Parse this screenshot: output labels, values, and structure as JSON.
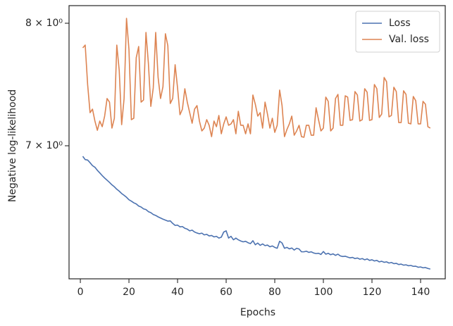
{
  "chart_data": {
    "type": "line",
    "xlabel": "Epochs",
    "ylabel": "Negative log-likelihood",
    "yscale": "log",
    "legend": "upper right",
    "grid": false,
    "xlim": [
      -4.65,
      150.15
    ],
    "ylim": [
      6.055,
      8.155
    ],
    "xticks": [
      0,
      20,
      40,
      60,
      80,
      100,
      120,
      140
    ],
    "yticks": [
      {
        "value": 7,
        "label": "7 × 10⁰"
      },
      {
        "value": 8,
        "label": "8 × 10⁰"
      }
    ],
    "x": [
      1,
      2,
      3,
      4,
      5,
      6,
      7,
      8,
      9,
      10,
      11,
      12,
      13,
      14,
      15,
      16,
      17,
      18,
      19,
      20,
      21,
      22,
      23,
      24,
      25,
      26,
      27,
      28,
      29,
      30,
      31,
      32,
      33,
      34,
      35,
      36,
      37,
      38,
      39,
      40,
      41,
      42,
      43,
      44,
      45,
      46,
      47,
      48,
      49,
      50,
      51,
      52,
      53,
      54,
      55,
      56,
      57,
      58,
      59,
      60,
      61,
      62,
      63,
      64,
      65,
      66,
      67,
      68,
      69,
      70,
      71,
      72,
      73,
      74,
      75,
      76,
      77,
      78,
      79,
      80,
      81,
      82,
      83,
      84,
      85,
      86,
      87,
      88,
      89,
      90,
      91,
      92,
      93,
      94,
      95,
      96,
      97,
      98,
      99,
      100,
      101,
      102,
      103,
      104,
      105,
      106,
      107,
      108,
      109,
      110,
      111,
      112,
      113,
      114,
      115,
      116,
      117,
      118,
      119,
      120,
      121,
      122,
      123,
      124,
      125,
      126,
      127,
      128,
      129,
      130,
      131,
      132,
      133,
      134,
      135,
      136,
      137,
      138,
      139,
      140,
      141,
      142,
      143,
      144
    ],
    "series": [
      {
        "name": "Loss",
        "color": "#4c72b0",
        "values": [
          6.92,
          6.895,
          6.892,
          6.872,
          6.85,
          6.838,
          6.815,
          6.796,
          6.776,
          6.758,
          6.742,
          6.726,
          6.708,
          6.694,
          6.676,
          6.662,
          6.645,
          6.632,
          6.618,
          6.6,
          6.59,
          6.578,
          6.57,
          6.555,
          6.548,
          6.535,
          6.53,
          6.515,
          6.508,
          6.495,
          6.488,
          6.478,
          6.47,
          6.462,
          6.455,
          6.448,
          6.45,
          6.432,
          6.418,
          6.42,
          6.408,
          6.41,
          6.398,
          6.392,
          6.38,
          6.385,
          6.372,
          6.365,
          6.36,
          6.364,
          6.352,
          6.356,
          6.345,
          6.348,
          6.338,
          6.342,
          6.33,
          6.336,
          6.372,
          6.38,
          6.33,
          6.342,
          6.318,
          6.33,
          6.318,
          6.31,
          6.304,
          6.308,
          6.298,
          6.292,
          6.312,
          6.284,
          6.296,
          6.28,
          6.29,
          6.278,
          6.282,
          6.27,
          6.276,
          6.266,
          6.26,
          6.308,
          6.296,
          6.26,
          6.266,
          6.256,
          6.262,
          6.248,
          6.26,
          6.255,
          6.236,
          6.236,
          6.24,
          6.232,
          6.236,
          6.228,
          6.224,
          6.226,
          6.218,
          6.238,
          6.22,
          6.226,
          6.216,
          6.222,
          6.212,
          6.22,
          6.208,
          6.204,
          6.206,
          6.2,
          6.195,
          6.198,
          6.19,
          6.194,
          6.186,
          6.19,
          6.182,
          6.188,
          6.178,
          6.182,
          6.174,
          6.178,
          6.168,
          6.172,
          6.165,
          6.168,
          6.16,
          6.164,
          6.156,
          6.158,
          6.15,
          6.153,
          6.146,
          6.148,
          6.142,
          6.144,
          6.138,
          6.139,
          6.132,
          6.134,
          6.128,
          6.13,
          6.124,
          6.12
        ]
      },
      {
        "name": "Val. loss",
        "color": "#dd8452",
        "values": [
          7.788,
          7.812,
          7.483,
          7.257,
          7.285,
          7.191,
          7.119,
          7.191,
          7.147,
          7.23,
          7.37,
          7.341,
          7.136,
          7.213,
          7.812,
          7.599,
          7.163,
          7.37,
          8.043,
          7.776,
          7.202,
          7.213,
          7.705,
          7.8,
          7.341,
          7.358,
          7.92,
          7.658,
          7.307,
          7.455,
          7.92,
          7.541,
          7.37,
          7.466,
          7.909,
          7.806,
          7.33,
          7.37,
          7.646,
          7.455,
          7.241,
          7.285,
          7.449,
          7.341,
          7.257,
          7.174,
          7.285,
          7.313,
          7.191,
          7.114,
          7.136,
          7.202,
          7.158,
          7.07,
          7.191,
          7.147,
          7.235,
          7.092,
          7.169,
          7.224,
          7.158,
          7.169,
          7.202,
          7.092,
          7.268,
          7.158,
          7.158,
          7.092,
          7.169,
          7.092,
          7.398,
          7.324,
          7.23,
          7.257,
          7.136,
          7.341,
          7.246,
          7.136,
          7.213,
          7.103,
          7.158,
          7.438,
          7.313,
          7.07,
          7.125,
          7.169,
          7.23,
          7.081,
          7.114,
          7.158,
          7.07,
          7.065,
          7.158,
          7.158,
          7.081,
          7.081,
          7.296,
          7.202,
          7.114,
          7.136,
          7.381,
          7.347,
          7.114,
          7.136,
          7.37,
          7.403,
          7.158,
          7.158,
          7.392,
          7.381,
          7.196,
          7.202,
          7.426,
          7.398,
          7.191,
          7.202,
          7.449,
          7.421,
          7.196,
          7.202,
          7.483,
          7.449,
          7.219,
          7.246,
          7.541,
          7.506,
          7.224,
          7.235,
          7.461,
          7.426,
          7.179,
          7.179,
          7.432,
          7.403,
          7.174,
          7.169,
          7.386,
          7.352,
          7.169,
          7.169,
          7.347,
          7.324,
          7.147,
          7.136
        ]
      }
    ]
  }
}
